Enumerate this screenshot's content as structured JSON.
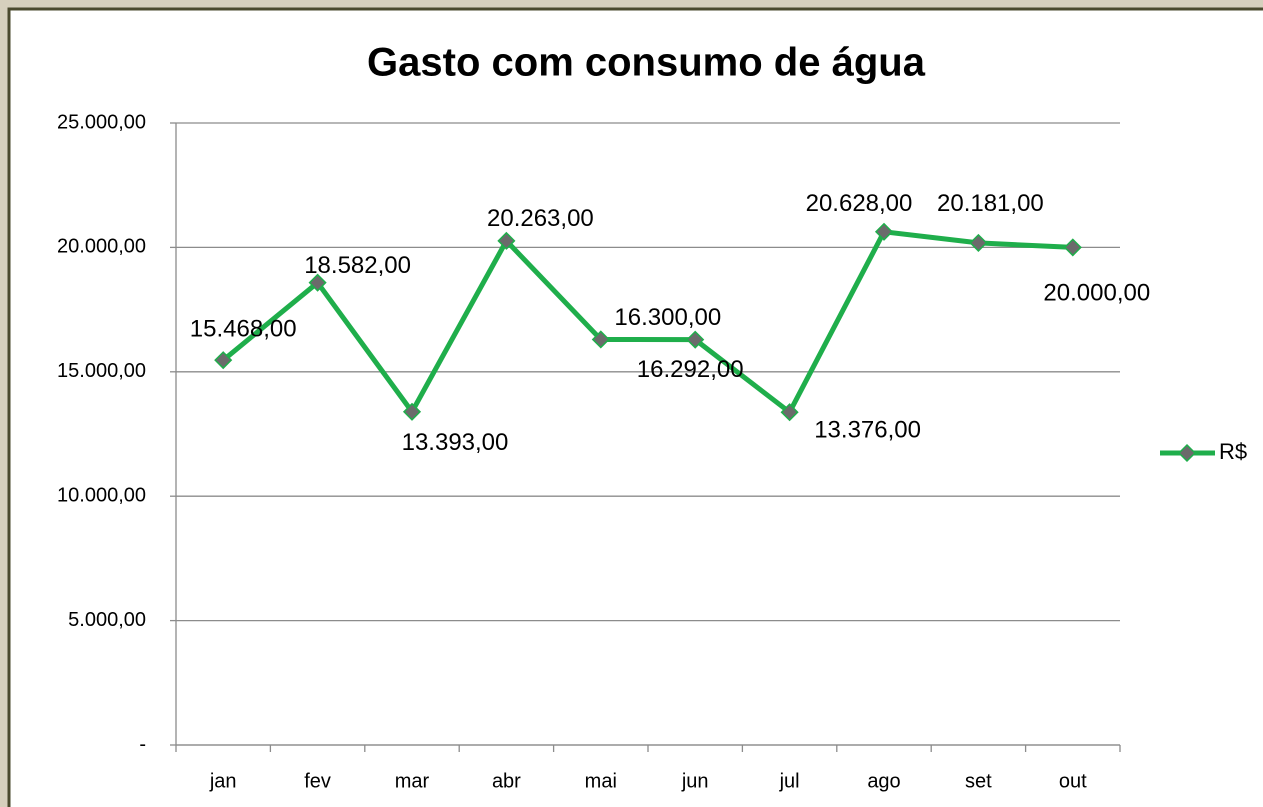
{
  "chart_data": {
    "type": "line",
    "title": "Gasto com consumo de água",
    "categories": [
      "jan",
      "fev",
      "mar",
      "abr",
      "mai",
      "jun",
      "jul",
      "ago",
      "set",
      "out"
    ],
    "series": [
      {
        "name": "R$",
        "color": "#1fae4b",
        "values": [
          15468,
          18582,
          13393,
          20263,
          16300,
          16292,
          13376,
          20628,
          20181,
          20000
        ],
        "value_labels": [
          "15.468,00",
          "18.582,00",
          "13.393,00",
          "20.263,00",
          "16.300,00",
          "16.292,00",
          "13.376,00",
          "20.628,00",
          "20.181,00",
          "20.000,00"
        ]
      }
    ],
    "ylim": [
      0,
      25000
    ],
    "yticks": [
      {
        "value": 0,
        "label": "-"
      },
      {
        "value": 5000,
        "label": "5.000,00"
      },
      {
        "value": 10000,
        "label": "10.000,00"
      },
      {
        "value": 15000,
        "label": "15.000,00"
      },
      {
        "value": 20000,
        "label": "20.000,00"
      },
      {
        "value": 25000,
        "label": "25.000,00"
      }
    ],
    "grid": true,
    "legend": "right"
  }
}
